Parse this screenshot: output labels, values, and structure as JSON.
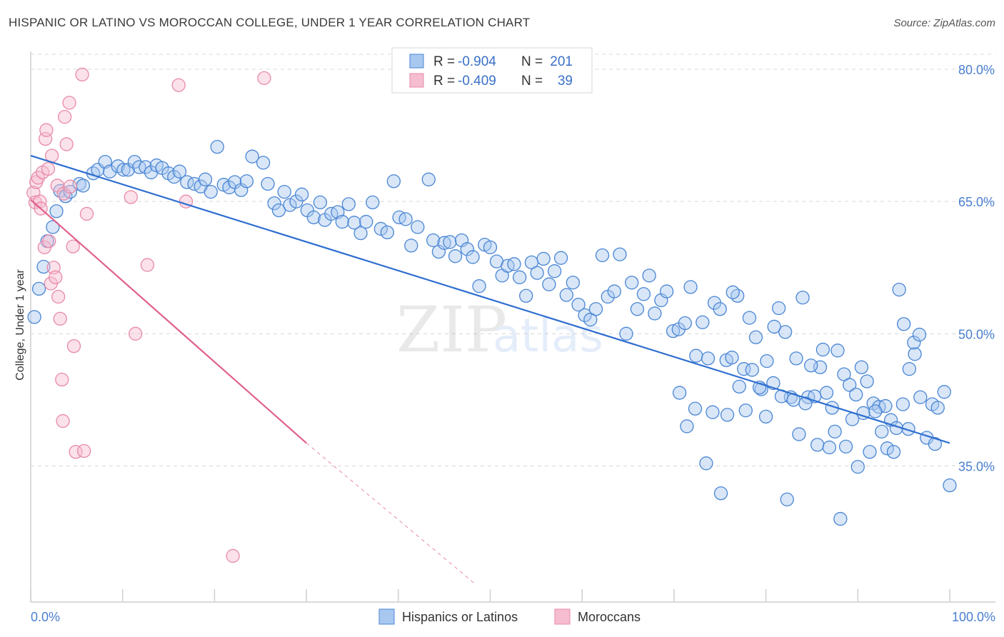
{
  "title": "HISPANIC OR LATINO VS MOROCCAN COLLEGE, UNDER 1 YEAR CORRELATION CHART",
  "source": "Source: ZipAtlas.com",
  "colors": {
    "blue_fill": "#a9c8f0",
    "blue_stroke": "#4a86d4",
    "blue_line": "#2f6fd0",
    "pink_fill": "#f6bcd0",
    "pink_stroke": "#e88aa8",
    "pink_line": "#e0608e",
    "grid": "#d8d8d8",
    "tick_text": "#4a7fd0"
  },
  "legend": {
    "rows": [
      {
        "r_label": "R =",
        "r_value": "-0.904",
        "n_label": "N =",
        "n_value": "201",
        "series": "blue"
      },
      {
        "r_label": "R =",
        "r_value": "-0.409",
        "n_label": "N =",
        "n_value": "39",
        "series": "pink"
      }
    ]
  },
  "bottom_legend": [
    {
      "label": "Hispanics or Latinos",
      "series": "blue"
    },
    {
      "label": "Moroccans",
      "series": "pink"
    }
  ],
  "watermark": "ZIPatlas",
  "chart_data": {
    "type": "scatter",
    "title": "HISPANIC OR LATINO VS MOROCCAN COLLEGE, UNDER 1 YEAR CORRELATION CHART",
    "xlabel": "",
    "ylabel": "College, Under 1 year",
    "xlim": [
      0,
      100
    ],
    "ylim": [
      20,
      83
    ],
    "x_tick_labels": [
      "0.0%",
      "100.0%"
    ],
    "y_ticks": [
      35,
      50,
      65,
      80
    ],
    "y_tick_labels": [
      "35.0%",
      "50.0%",
      "65.0%",
      "80.0%"
    ],
    "grid": true,
    "series": [
      {
        "name": "Hispanics or Latinos",
        "color": "blue",
        "trend": {
          "x0": 0,
          "y0": 70.2,
          "x1": 100,
          "y1": 37.6
        },
        "points": [
          [
            0.4,
            51.9
          ],
          [
            0.9,
            55.1
          ],
          [
            1.4,
            57.6
          ],
          [
            1.8,
            60.5
          ],
          [
            2.4,
            62.1
          ],
          [
            2.8,
            63.9
          ],
          [
            3.2,
            66.2
          ],
          [
            3.8,
            65.6
          ],
          [
            4.3,
            66.1
          ],
          [
            5.3,
            67.0
          ],
          [
            5.7,
            66.8
          ],
          [
            6.8,
            68.2
          ],
          [
            7.3,
            68.6
          ],
          [
            8.1,
            69.5
          ],
          [
            8.6,
            68.4
          ],
          [
            9.5,
            69.0
          ],
          [
            10.1,
            68.6
          ],
          [
            10.6,
            68.6
          ],
          [
            11.3,
            69.5
          ],
          [
            11.8,
            68.9
          ],
          [
            12.5,
            68.9
          ],
          [
            13.1,
            68.3
          ],
          [
            13.7,
            69.1
          ],
          [
            14.3,
            68.8
          ],
          [
            15.0,
            68.2
          ],
          [
            15.6,
            67.8
          ],
          [
            16.2,
            68.4
          ],
          [
            17.0,
            67.2
          ],
          [
            17.8,
            67.0
          ],
          [
            18.5,
            66.7
          ],
          [
            19.0,
            67.5
          ],
          [
            19.6,
            66.1
          ],
          [
            20.3,
            71.2
          ],
          [
            21.0,
            66.9
          ],
          [
            21.6,
            66.6
          ],
          [
            22.2,
            67.2
          ],
          [
            22.9,
            66.3
          ],
          [
            23.5,
            67.3
          ],
          [
            24.1,
            70.1
          ],
          [
            25.3,
            69.4
          ],
          [
            25.8,
            67.0
          ],
          [
            26.5,
            64.8
          ],
          [
            27.0,
            64.0
          ],
          [
            27.6,
            66.1
          ],
          [
            28.2,
            64.6
          ],
          [
            28.9,
            65.0
          ],
          [
            29.5,
            65.8
          ],
          [
            30.1,
            64.0
          ],
          [
            30.8,
            63.2
          ],
          [
            31.5,
            64.9
          ],
          [
            32.0,
            62.9
          ],
          [
            32.7,
            63.6
          ],
          [
            33.4,
            63.8
          ],
          [
            33.9,
            62.7
          ],
          [
            34.6,
            64.7
          ],
          [
            35.2,
            62.6
          ],
          [
            35.9,
            61.4
          ],
          [
            36.5,
            62.7
          ],
          [
            37.2,
            64.9
          ],
          [
            38.1,
            61.9
          ],
          [
            38.8,
            61.5
          ],
          [
            39.5,
            67.3
          ],
          [
            40.1,
            63.2
          ],
          [
            40.8,
            63.0
          ],
          [
            41.4,
            60.0
          ],
          [
            42.1,
            62.1
          ],
          [
            43.3,
            67.5
          ],
          [
            43.8,
            60.6
          ],
          [
            44.4,
            59.3
          ],
          [
            45.0,
            60.3
          ],
          [
            45.6,
            60.4
          ],
          [
            46.2,
            58.8
          ],
          [
            46.9,
            60.6
          ],
          [
            47.5,
            59.6
          ],
          [
            48.1,
            58.7
          ],
          [
            48.8,
            55.4
          ],
          [
            49.4,
            60.1
          ],
          [
            50.0,
            59.8
          ],
          [
            50.7,
            58.2
          ],
          [
            51.3,
            56.6
          ],
          [
            51.9,
            57.7
          ],
          [
            52.6,
            57.9
          ],
          [
            53.2,
            56.4
          ],
          [
            53.9,
            54.3
          ],
          [
            54.5,
            58.1
          ],
          [
            55.1,
            56.9
          ],
          [
            55.8,
            58.5
          ],
          [
            56.4,
            55.6
          ],
          [
            57.0,
            57.1
          ],
          [
            57.7,
            58.6
          ],
          [
            58.3,
            54.4
          ],
          [
            59.0,
            55.8
          ],
          [
            59.6,
            53.3
          ],
          [
            60.3,
            52.1
          ],
          [
            60.9,
            51.6
          ],
          [
            61.5,
            52.8
          ],
          [
            62.2,
            58.9
          ],
          [
            62.8,
            54.2
          ],
          [
            63.5,
            54.8
          ],
          [
            64.1,
            59.0
          ],
          [
            64.8,
            50.0
          ],
          [
            65.4,
            55.8
          ],
          [
            66.0,
            52.8
          ],
          [
            66.7,
            54.5
          ],
          [
            67.3,
            56.6
          ],
          [
            67.9,
            52.3
          ],
          [
            68.6,
            53.8
          ],
          [
            69.2,
            54.8
          ],
          [
            69.9,
            50.3
          ],
          [
            70.5,
            50.5
          ],
          [
            71.2,
            51.2
          ],
          [
            71.8,
            55.3
          ],
          [
            72.4,
            47.5
          ],
          [
            73.1,
            51.3
          ],
          [
            73.7,
            47.2
          ],
          [
            74.4,
            53.5
          ],
          [
            75.0,
            52.8
          ],
          [
            75.7,
            47.0
          ],
          [
            76.3,
            47.3
          ],
          [
            76.9,
            54.3
          ],
          [
            77.6,
            46.0
          ],
          [
            78.2,
            51.8
          ],
          [
            78.9,
            49.6
          ],
          [
            79.5,
            43.7
          ],
          [
            80.1,
            46.9
          ],
          [
            80.8,
            44.4
          ],
          [
            81.4,
            52.9
          ],
          [
            82.1,
            50.2
          ],
          [
            82.7,
            42.8
          ],
          [
            83.3,
            47.2
          ],
          [
            84.0,
            54.1
          ],
          [
            84.6,
            42.8
          ],
          [
            85.3,
            42.9
          ],
          [
            85.9,
            46.2
          ],
          [
            86.6,
            43.3
          ],
          [
            87.2,
            41.6
          ],
          [
            87.8,
            48.1
          ],
          [
            88.5,
            45.4
          ],
          [
            89.1,
            44.2
          ],
          [
            89.8,
            43.1
          ],
          [
            90.4,
            46.2
          ],
          [
            91.0,
            44.6
          ],
          [
            91.7,
            42.1
          ],
          [
            92.3,
            41.7
          ],
          [
            93.0,
            41.8
          ],
          [
            93.6,
            40.2
          ],
          [
            94.2,
            39.3
          ],
          [
            94.9,
            42.0
          ],
          [
            95.5,
            39.2
          ],
          [
            96.2,
            47.7
          ],
          [
            96.8,
            42.8
          ],
          [
            97.5,
            38.2
          ],
          [
            98.1,
            42.0
          ],
          [
            98.7,
            41.6
          ],
          [
            99.4,
            43.4
          ],
          [
            100.0,
            32.8
          ],
          [
            70.6,
            43.3
          ],
          [
            71.4,
            39.5
          ],
          [
            72.3,
            41.5
          ],
          [
            73.5,
            35.3
          ],
          [
            74.2,
            41.1
          ],
          [
            75.1,
            31.9
          ],
          [
            75.8,
            40.8
          ],
          [
            76.4,
            54.7
          ],
          [
            77.1,
            44.0
          ],
          [
            77.8,
            41.3
          ],
          [
            78.5,
            45.9
          ],
          [
            79.3,
            43.9
          ],
          [
            80.0,
            40.6
          ],
          [
            80.9,
            50.8
          ],
          [
            81.7,
            42.9
          ],
          [
            82.3,
            31.2
          ],
          [
            83.0,
            42.5
          ],
          [
            83.6,
            38.6
          ],
          [
            84.3,
            42.1
          ],
          [
            84.9,
            46.4
          ],
          [
            85.6,
            37.4
          ],
          [
            86.2,
            48.2
          ],
          [
            86.9,
            37.1
          ],
          [
            87.5,
            38.9
          ],
          [
            88.1,
            29.0
          ],
          [
            88.7,
            37.2
          ],
          [
            89.4,
            40.3
          ],
          [
            90.0,
            34.9
          ],
          [
            90.6,
            41.0
          ],
          [
            91.3,
            36.6
          ],
          [
            91.9,
            41.2
          ],
          [
            92.6,
            38.9
          ],
          [
            93.2,
            37.0
          ],
          [
            93.9,
            36.6
          ],
          [
            94.5,
            55.0
          ],
          [
            95.0,
            51.1
          ],
          [
            95.6,
            46.0
          ],
          [
            96.1,
            49.0
          ],
          [
            96.7,
            49.9
          ],
          [
            98.4,
            37.5
          ]
        ]
      },
      {
        "name": "Moroccans",
        "color": "pink",
        "trend": {
          "x0": 0,
          "y0": 65.2,
          "x1": 30,
          "y1": 37.6
        },
        "trend_dashed": {
          "x0": 30,
          "y0": 37.6,
          "x1": 48.5,
          "y1": 21.5
        },
        "points": [
          [
            0.3,
            66.0
          ],
          [
            0.5,
            64.9
          ],
          [
            0.6,
            67.2
          ],
          [
            0.8,
            67.7
          ],
          [
            1.0,
            65.0
          ],
          [
            1.1,
            64.2
          ],
          [
            1.3,
            68.3
          ],
          [
            1.5,
            59.8
          ],
          [
            1.6,
            72.1
          ],
          [
            1.7,
            73.1
          ],
          [
            1.9,
            68.7
          ],
          [
            2.0,
            60.5
          ],
          [
            2.2,
            55.7
          ],
          [
            2.3,
            70.2
          ],
          [
            2.5,
            57.5
          ],
          [
            2.7,
            56.4
          ],
          [
            2.9,
            66.8
          ],
          [
            3.0,
            54.2
          ],
          [
            3.2,
            51.7
          ],
          [
            3.4,
            44.8
          ],
          [
            3.5,
            40.1
          ],
          [
            3.6,
            65.9
          ],
          [
            3.7,
            74.6
          ],
          [
            3.9,
            71.5
          ],
          [
            4.2,
            76.2
          ],
          [
            4.3,
            66.7
          ],
          [
            4.6,
            59.9
          ],
          [
            4.7,
            48.6
          ],
          [
            4.9,
            36.6
          ],
          [
            5.6,
            79.4
          ],
          [
            5.8,
            36.7
          ],
          [
            6.1,
            63.6
          ],
          [
            10.9,
            65.5
          ],
          [
            11.4,
            50.0
          ],
          [
            12.7,
            57.8
          ],
          [
            16.1,
            78.2
          ],
          [
            16.9,
            65.0
          ],
          [
            22.0,
            24.8
          ],
          [
            25.4,
            79.0
          ]
        ]
      }
    ]
  }
}
